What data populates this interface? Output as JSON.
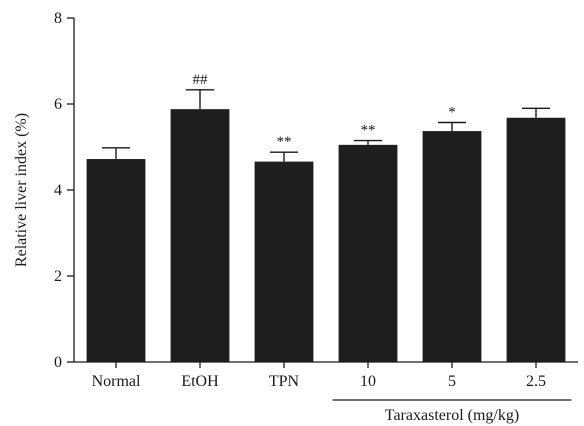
{
  "chart_data": {
    "type": "bar",
    "categories": [
      "Normal",
      "EtOH",
      "TPN",
      "10",
      "5",
      "2.5"
    ],
    "values": [
      4.72,
      5.88,
      4.66,
      5.05,
      5.37,
      5.68
    ],
    "errors": [
      0.26,
      0.45,
      0.22,
      0.1,
      0.2,
      0.22
    ],
    "annotations": [
      "",
      "##",
      "**",
      "**",
      "*",
      ""
    ],
    "ylabel": "Relative liver index (%)",
    "xlabel": "",
    "ylim": [
      0,
      8
    ],
    "yticks": [
      0,
      2,
      4,
      6,
      8
    ],
    "group_label": "Taraxasterol (mg/kg)",
    "group_categories": [
      "10",
      "5",
      "2.5"
    ],
    "grid": false,
    "bar_color": "#1e1e1e"
  }
}
